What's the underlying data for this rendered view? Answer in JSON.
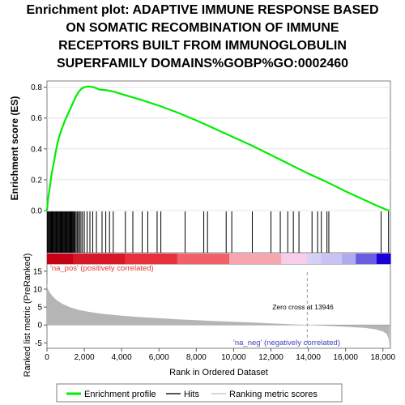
{
  "title_lines": [
    "Enrichment plot: ADAPTIVE IMMUNE RESPONSE BASED",
    "ON SOMATIC RECOMBINATION OF IMMUNE",
    "RECEPTORS BUILT FROM IMMUNOGLOBULIN",
    "SUPERFAMILY DOMAINS%GOBP%GO:0002460"
  ],
  "colors": {
    "es_line": "#00ee00",
    "hit": "#000000",
    "metric_fill": "#b5b5b5",
    "pos_label": "#e53935",
    "neg_label": "#3f3fbf",
    "zero_cross": "#9e9e9e",
    "heat_pos": "#e8001c",
    "heat_neg": "#1a00d6"
  },
  "chart_data": {
    "type": "line",
    "x_range": [
      0,
      18400
    ],
    "xlabel": "Rank in Ordered Dataset",
    "x_ticks": [
      0,
      2000,
      4000,
      6000,
      8000,
      10000,
      12000,
      14000,
      16000,
      18000
    ],
    "x_tick_labels": [
      "0",
      "2,000",
      "4,000",
      "6,000",
      "8,000",
      "10,000",
      "12,000",
      "14,000",
      "16,000",
      "18,000"
    ],
    "enrichment": {
      "ylabel": "Enrichment score (ES)",
      "ylim": [
        0,
        0.84
      ],
      "y_ticks": [
        0.0,
        0.2,
        0.4,
        0.6,
        0.8
      ],
      "y_tick_labels": [
        "0.0",
        "0.2",
        "0.4",
        "0.6",
        "0.8"
      ],
      "series_name": "Enrichment profile",
      "points": [
        [
          0,
          0.0
        ],
        [
          60,
          0.08
        ],
        [
          150,
          0.15
        ],
        [
          250,
          0.24
        ],
        [
          350,
          0.3
        ],
        [
          450,
          0.37
        ],
        [
          550,
          0.43
        ],
        [
          650,
          0.48
        ],
        [
          800,
          0.53
        ],
        [
          950,
          0.58
        ],
        [
          1100,
          0.62
        ],
        [
          1250,
          0.66
        ],
        [
          1400,
          0.7
        ],
        [
          1550,
          0.74
        ],
        [
          1700,
          0.77
        ],
        [
          1850,
          0.79
        ],
        [
          2000,
          0.8
        ],
        [
          2200,
          0.805
        ],
        [
          2500,
          0.8
        ],
        [
          2800,
          0.785
        ],
        [
          3200,
          0.78
        ],
        [
          3600,
          0.77
        ],
        [
          4000,
          0.755
        ],
        [
          5000,
          0.72
        ],
        [
          6000,
          0.68
        ],
        [
          7000,
          0.635
        ],
        [
          8000,
          0.585
        ],
        [
          9000,
          0.53
        ],
        [
          10000,
          0.475
        ],
        [
          11000,
          0.42
        ],
        [
          12000,
          0.36
        ],
        [
          13000,
          0.3
        ],
        [
          14000,
          0.24
        ],
        [
          15000,
          0.185
        ],
        [
          16000,
          0.125
        ],
        [
          17000,
          0.07
        ],
        [
          17800,
          0.025
        ],
        [
          18200,
          0.005
        ],
        [
          18350,
          0.0
        ]
      ]
    },
    "hits": {
      "series_name": "Hits",
      "positions": [
        20,
        60,
        100,
        140,
        180,
        220,
        260,
        300,
        340,
        380,
        420,
        460,
        500,
        540,
        580,
        620,
        660,
        700,
        740,
        780,
        820,
        860,
        900,
        940,
        980,
        1020,
        1060,
        1100,
        1140,
        1180,
        1220,
        1260,
        1300,
        1340,
        1380,
        1420,
        1460,
        1500,
        1560,
        1620,
        1680,
        1750,
        1820,
        1900,
        2000,
        2150,
        2300,
        2450,
        2650,
        2950,
        3150,
        3350,
        3550,
        4200,
        4600,
        5100,
        5400,
        5900,
        6100,
        7400,
        8400,
        8600,
        9600,
        9900,
        11000,
        12000,
        12500,
        12900,
        13200,
        13500,
        14200,
        14500,
        14700,
        15000,
        15100,
        17900,
        18300
      ]
    },
    "ranked_metric": {
      "ylabel": "Ranked list metric (PreRanked)",
      "ylim": [
        -6.5,
        17
      ],
      "y_ticks": [
        -5,
        0,
        5,
        10,
        15
      ],
      "y_tick_labels": [
        "-5",
        "0",
        "5",
        "10",
        "15"
      ],
      "series_name": "Ranking metric scores",
      "points": [
        [
          0,
          11.5
        ],
        [
          50,
          10.0
        ],
        [
          150,
          9.0
        ],
        [
          300,
          8.0
        ],
        [
          500,
          7.0
        ],
        [
          800,
          6.0
        ],
        [
          1200,
          5.0
        ],
        [
          1700,
          4.2
        ],
        [
          2300,
          3.6
        ],
        [
          3000,
          3.1
        ],
        [
          4000,
          2.6
        ],
        [
          5000,
          2.2
        ],
        [
          6000,
          1.9
        ],
        [
          7000,
          1.6
        ],
        [
          8000,
          1.35
        ],
        [
          9000,
          1.1
        ],
        [
          10000,
          0.9
        ],
        [
          11000,
          0.7
        ],
        [
          12000,
          0.45
        ],
        [
          13000,
          0.22
        ],
        [
          13946,
          0.0
        ],
        [
          15000,
          -0.25
        ],
        [
          16000,
          -0.5
        ],
        [
          17000,
          -0.8
        ],
        [
          17600,
          -1.2
        ],
        [
          18000,
          -1.8
        ],
        [
          18200,
          -2.5
        ],
        [
          18300,
          -3.8
        ],
        [
          18350,
          -6.0
        ]
      ],
      "zero_cross_rank": 13946,
      "zero_cross_label": "Zero cross at 13946",
      "pos_label": "'na_pos' (positively correlated)",
      "neg_label": "'na_neg' (negatively correlated)"
    },
    "legend": {
      "placement": "bottom",
      "entries": [
        "Enrichment profile",
        "Hits",
        "Ranking metric scores"
      ]
    }
  }
}
